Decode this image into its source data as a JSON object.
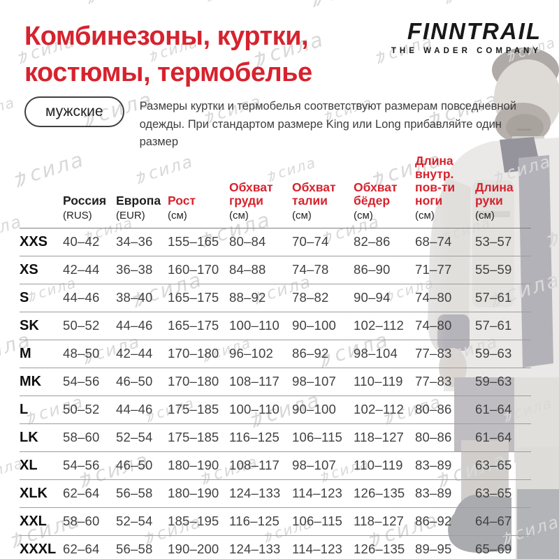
{
  "header": {
    "title_line1": "Комбинезоны, куртки,",
    "title_line2": "костюмы, термобелье",
    "brand_name": "FINNTRAIL",
    "brand_tagline": "THE WADER COMPANY"
  },
  "intro": {
    "badge": "мужские",
    "text": "Размеры куртки и термобелья соответствуют размерам повседневной одежды. При стандартом размере King или Long прибавляйте один размер"
  },
  "watermark": {
    "cjk_glyph": "力",
    "text": "сила"
  },
  "colors": {
    "accent_red": "#d6232e",
    "text_dark": "#1c1c1c",
    "value_gray": "#414141",
    "line_gray": "#9c9c9c",
    "watermark_gray": "#d9d9d9"
  },
  "chart_data": {
    "type": "table",
    "title": "Комбинезоны, куртки, костюмы, термобелье",
    "category_badge": "мужские",
    "note": "Размеры куртки и термобелья соответствуют размерам повседневной одежды. При стандартом размере King или Long прибавляйте один размер",
    "columns": [
      {
        "key": "size",
        "label": "",
        "sub": "",
        "red": false
      },
      {
        "key": "rus",
        "label": "Россия",
        "sub": "(RUS)",
        "red": false
      },
      {
        "key": "eur",
        "label": "Европа",
        "sub": "(EUR)",
        "red": false
      },
      {
        "key": "height",
        "label": "Рост",
        "sub": "(см)",
        "red": true
      },
      {
        "key": "chest",
        "label": "Обхват груди",
        "sub": "(см)",
        "red": true
      },
      {
        "key": "waist",
        "label": "Обхват талии",
        "sub": "(см)",
        "red": true
      },
      {
        "key": "hips",
        "label": "Обхват бёдер",
        "sub": "(см)",
        "red": true
      },
      {
        "key": "inseam",
        "label": "Длина внутр. пов-ти ноги",
        "sub": "(см)",
        "red": true
      },
      {
        "key": "arm",
        "label": "Длина руки",
        "sub": "(см)",
        "red": true
      }
    ],
    "rows": [
      {
        "size": "XXS",
        "values": [
          "40–42",
          "34–36",
          "155–165",
          "80–84",
          "70–74",
          "82–86",
          "68–74",
          "53–57"
        ]
      },
      {
        "size": "XS",
        "values": [
          "42–44",
          "36–38",
          "160–170",
          "84–88",
          "74–78",
          "86–90",
          "71–77",
          "55–59"
        ]
      },
      {
        "size": "S",
        "values": [
          "44–46",
          "38–40",
          "165–175",
          "88–92",
          "78–82",
          "90–94",
          "74–80",
          "57–61"
        ]
      },
      {
        "size": "SK",
        "values": [
          "50–52",
          "44–46",
          "165–175",
          "100–110",
          "90–100",
          "102–112",
          "74–80",
          "57–61"
        ]
      },
      {
        "size": "M",
        "values": [
          "48–50",
          "42–44",
          "170–180",
          "96–102",
          "86–92",
          "98–104",
          "77–83",
          "59–63"
        ]
      },
      {
        "size": "MK",
        "values": [
          "54–56",
          "46–50",
          "170–180",
          "108–117",
          "98–107",
          "110–119",
          "77–83",
          "59–63"
        ]
      },
      {
        "size": "L",
        "values": [
          "50–52",
          "44–46",
          "175–185",
          "100–110",
          "90–100",
          "102–112",
          "80–86",
          "61–64"
        ]
      },
      {
        "size": "LK",
        "values": [
          "58–60",
          "52–54",
          "175–185",
          "116–125",
          "106–115",
          "118–127",
          "80–86",
          "61–64"
        ]
      },
      {
        "size": "XL",
        "values": [
          "54–56",
          "46–50",
          "180–190",
          "108–117",
          "98–107",
          "110–119",
          "83–89",
          "63–65"
        ]
      },
      {
        "size": "XLK",
        "values": [
          "62–64",
          "56–58",
          "180–190",
          "124–133",
          "114–123",
          "126–135",
          "83–89",
          "63–65"
        ]
      },
      {
        "size": "XXL",
        "values": [
          "58–60",
          "52–54",
          "185–195",
          "116–125",
          "106–115",
          "118–127",
          "86–92",
          "64–67"
        ]
      },
      {
        "size": "XXXL",
        "values": [
          "62–64",
          "56–58",
          "190–200",
          "124–133",
          "114–123",
          "126–135",
          "89–95",
          "65–69"
        ]
      }
    ]
  }
}
